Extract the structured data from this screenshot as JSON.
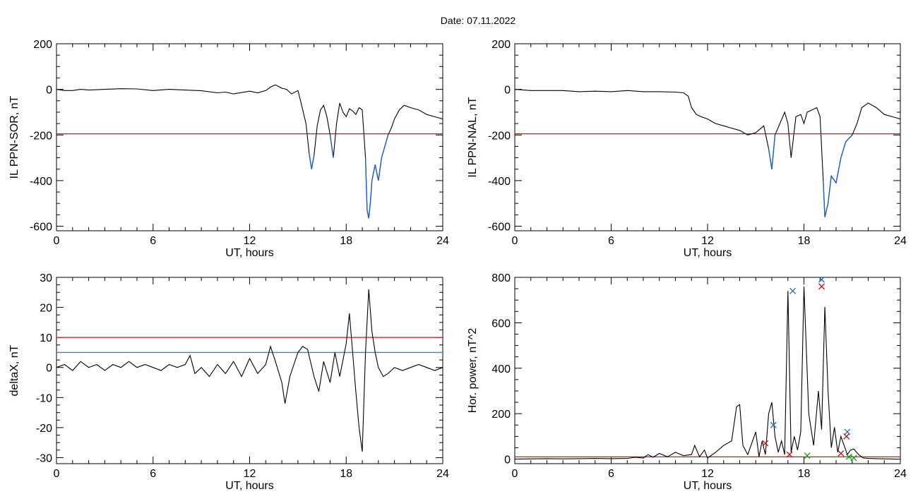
{
  "header": {
    "date_label": "Date:  07.11.2022"
  },
  "colors": {
    "trace": "#000000",
    "highlight": "#1a5fd6",
    "threshold": "#e01010",
    "aux_threshold": "#1a8fd6",
    "marker_blue": "#1a6fb0",
    "marker_red": "#d01010",
    "marker_green": "#10a010"
  },
  "chart_data": [
    {
      "id": "p1",
      "type": "line",
      "ylabel": "IL PPN-SOR, nT",
      "xlabel": "UT, hours",
      "xlim": [
        0,
        24
      ],
      "ylim": [
        -620,
        200
      ],
      "xticks": [
        0,
        6,
        12,
        18,
        24
      ],
      "xtick_labels": [
        "0",
        "6",
        "12",
        "18",
        "24"
      ],
      "yticks": [
        200,
        0,
        -200,
        -400,
        -600
      ],
      "ytick_labels": [
        "200",
        "0",
        "-200",
        "-400",
        "-600"
      ],
      "threshold": -195,
      "highlight_below": -195,
      "series": [
        {
          "x": [
            0,
            0.5,
            1,
            1.5,
            2,
            3,
            4,
            5,
            6,
            7,
            8,
            9,
            10,
            10.5,
            11,
            12,
            12.5,
            13,
            13.3,
            13.6,
            14,
            14.3,
            14.6,
            15,
            15.2,
            15.5,
            15.7,
            15.85,
            16,
            16.2,
            16.4,
            16.6,
            16.8,
            17,
            17.2,
            17.4,
            17.6,
            17.8,
            18,
            18.2,
            18.4,
            18.6,
            18.8,
            19,
            19.2,
            19.3,
            19.4,
            19.5,
            19.6,
            19.8,
            20,
            20.2,
            20.4,
            20.6,
            20.8,
            21,
            21.3,
            21.6,
            22,
            22.5,
            23,
            23.5,
            24
          ],
          "values": [
            0,
            -5,
            -5,
            0,
            -3,
            0,
            3,
            2,
            -5,
            0,
            -3,
            -6,
            -15,
            -12,
            -20,
            -8,
            -15,
            -5,
            10,
            20,
            5,
            0,
            -20,
            -5,
            -60,
            -150,
            -280,
            -350,
            -290,
            -160,
            -90,
            -70,
            -120,
            -200,
            -300,
            -150,
            -60,
            -100,
            -120,
            -85,
            -95,
            -110,
            -80,
            -90,
            -300,
            -530,
            -565,
            -500,
            -400,
            -330,
            -400,
            -300,
            -250,
            -200,
            -170,
            -130,
            -90,
            -70,
            -80,
            -90,
            -110,
            -120,
            -130
          ]
        }
      ]
    },
    {
      "id": "p2",
      "type": "line",
      "ylabel": "IL PPN-NAL, nT",
      "xlabel": "UT, hours",
      "xlim": [
        0,
        24
      ],
      "ylim": [
        -620,
        200
      ],
      "xticks": [
        0,
        6,
        12,
        18,
        24
      ],
      "xtick_labels": [
        "0",
        "6",
        "12",
        "18",
        "24"
      ],
      "yticks": [
        200,
        0,
        -200,
        -400,
        -600
      ],
      "ytick_labels": [
        "200",
        "0",
        "-200",
        "-400",
        "-600"
      ],
      "threshold": -195,
      "highlight_below": -195,
      "series": [
        {
          "x": [
            0,
            1,
            2,
            3,
            4,
            5,
            6,
            7,
            8,
            9,
            10,
            10.5,
            10.8,
            11,
            11.3,
            11.6,
            12,
            12.5,
            13,
            13.5,
            14,
            14.5,
            15,
            15.5,
            15.8,
            16,
            16.2,
            16.5,
            16.8,
            17,
            17.2,
            17.5,
            17.8,
            18,
            18.2,
            18.5,
            18.8,
            19,
            19.2,
            19.3,
            19.5,
            19.7,
            20,
            20.3,
            20.6,
            21,
            21.3,
            21.6,
            22,
            22.5,
            23,
            23.5,
            24
          ],
          "values": [
            0,
            -5,
            -5,
            -5,
            -10,
            -8,
            -10,
            -5,
            -10,
            -10,
            -12,
            -15,
            -30,
            -80,
            -110,
            -120,
            -130,
            -150,
            -160,
            -170,
            -180,
            -200,
            -190,
            -160,
            -260,
            -350,
            -200,
            -150,
            -100,
            -150,
            -300,
            -120,
            -110,
            -150,
            -100,
            -90,
            -80,
            -120,
            -400,
            -560,
            -500,
            -380,
            -410,
            -300,
            -230,
            -200,
            -150,
            -80,
            -60,
            -80,
            -110,
            -120,
            -130
          ]
        }
      ]
    },
    {
      "id": "p3",
      "type": "line",
      "ylabel": "deltaX, nT",
      "xlabel": "UT, hours",
      "xlim": [
        0,
        24
      ],
      "ylim": [
        -32,
        30
      ],
      "xticks": [
        0,
        6,
        12,
        18,
        24
      ],
      "xtick_labels": [
        "0",
        "6",
        "12",
        "18",
        "24"
      ],
      "yticks": [
        30,
        20,
        10,
        0,
        -10,
        -20,
        -30
      ],
      "ytick_labels": [
        "30",
        "20",
        "10",
        "0",
        "-10",
        "-20",
        "-30"
      ],
      "threshold": 10,
      "aux_threshold": 5,
      "series": [
        {
          "x": [
            0,
            0.5,
            1,
            1.5,
            2,
            2.5,
            3,
            3.5,
            4,
            4.5,
            5,
            5.5,
            6,
            6.5,
            7,
            7.5,
            8,
            8.3,
            8.6,
            9,
            9.5,
            10,
            10.5,
            11,
            11.5,
            12,
            12.5,
            13,
            13.3,
            13.6,
            14,
            14.2,
            14.5,
            15,
            15.3,
            15.6,
            16,
            16.3,
            16.6,
            17,
            17.3,
            17.6,
            18,
            18.2,
            18.4,
            18.6,
            18.8,
            19,
            19.2,
            19.4,
            19.6,
            19.8,
            20,
            20.3,
            20.6,
            21,
            21.5,
            22,
            22.5,
            23,
            23.5,
            24
          ],
          "values": [
            0,
            1,
            -1,
            2,
            0,
            1,
            -1,
            1,
            0,
            2,
            0,
            1,
            0,
            -1,
            1,
            0,
            1,
            4,
            -2,
            0,
            -3,
            1,
            -2,
            2,
            -3,
            3,
            -2,
            1,
            7,
            2,
            -5,
            -12,
            -3,
            5,
            7,
            6,
            -3,
            -8,
            2,
            -5,
            5,
            -3,
            8,
            18,
            5,
            -8,
            -20,
            -28,
            5,
            26,
            12,
            5,
            0,
            -3,
            -2,
            0,
            -1,
            0,
            1,
            0,
            -1,
            0
          ]
        }
      ]
    },
    {
      "id": "p4",
      "type": "line",
      "ylabel": "Hor. power, nT^2",
      "xlabel": "UT, hours",
      "xlim": [
        0,
        24
      ],
      "ylim": [
        -20,
        800
      ],
      "xticks": [
        0,
        6,
        12,
        18,
        24
      ],
      "xtick_labels": [
        "0",
        "6",
        "12",
        "18",
        "24"
      ],
      "yticks": [
        800,
        600,
        400,
        200,
        0
      ],
      "ytick_labels": [
        "800",
        "600",
        "400",
        "200",
        "0"
      ],
      "threshold": 10,
      "series": [
        {
          "x": [
            0,
            1,
            2,
            3,
            4,
            5,
            6,
            7,
            7.5,
            8,
            8.3,
            8.6,
            9,
            9.5,
            10,
            10.5,
            11,
            11.2,
            11.5,
            11.8,
            12,
            12.5,
            13,
            13.5,
            13.8,
            14,
            14.2,
            14.5,
            15,
            15.2,
            15.4,
            15.6,
            15.8,
            16,
            16.2,
            16.4,
            16.6,
            16.8,
            17,
            17.2,
            17.4,
            17.6,
            17.8,
            18,
            18.3,
            18.6,
            18.9,
            19.1,
            19.3,
            19.5,
            19.7,
            19.9,
            20.1,
            20.3,
            20.5,
            20.7,
            20.9,
            21.1,
            21.4,
            21.7,
            22,
            22.5,
            23,
            24
          ],
          "values": [
            0,
            1,
            2,
            1,
            2,
            3,
            2,
            3,
            8,
            5,
            20,
            8,
            25,
            10,
            30,
            15,
            20,
            60,
            10,
            40,
            5,
            30,
            60,
            80,
            230,
            240,
            60,
            20,
            120,
            10,
            80,
            20,
            200,
            250,
            100,
            30,
            80,
            20,
            740,
            30,
            100,
            40,
            120,
            760,
            200,
            60,
            300,
            130,
            670,
            300,
            50,
            140,
            30,
            100,
            60,
            20,
            40,
            45,
            20,
            5,
            3,
            2,
            1,
            0
          ]
        }
      ],
      "markers": [
        {
          "x": 16.1,
          "y": 150,
          "color": "blue"
        },
        {
          "x": 17.3,
          "y": 740,
          "color": "blue"
        },
        {
          "x": 19.1,
          "y": 790,
          "color": "blue"
        },
        {
          "x": 19.1,
          "y": 760,
          "color": "red"
        },
        {
          "x": 20.7,
          "y": 120,
          "color": "blue"
        },
        {
          "x": 20.65,
          "y": 100,
          "color": "red"
        },
        {
          "x": 15.6,
          "y": 70,
          "color": "red"
        },
        {
          "x": 17.1,
          "y": 20,
          "color": "red"
        },
        {
          "x": 20.3,
          "y": 25,
          "color": "red"
        },
        {
          "x": 20.8,
          "y": 10,
          "color": "green"
        },
        {
          "x": 18.2,
          "y": 15,
          "color": "green"
        },
        {
          "x": 21.1,
          "y": 5,
          "color": "green"
        }
      ]
    }
  ]
}
